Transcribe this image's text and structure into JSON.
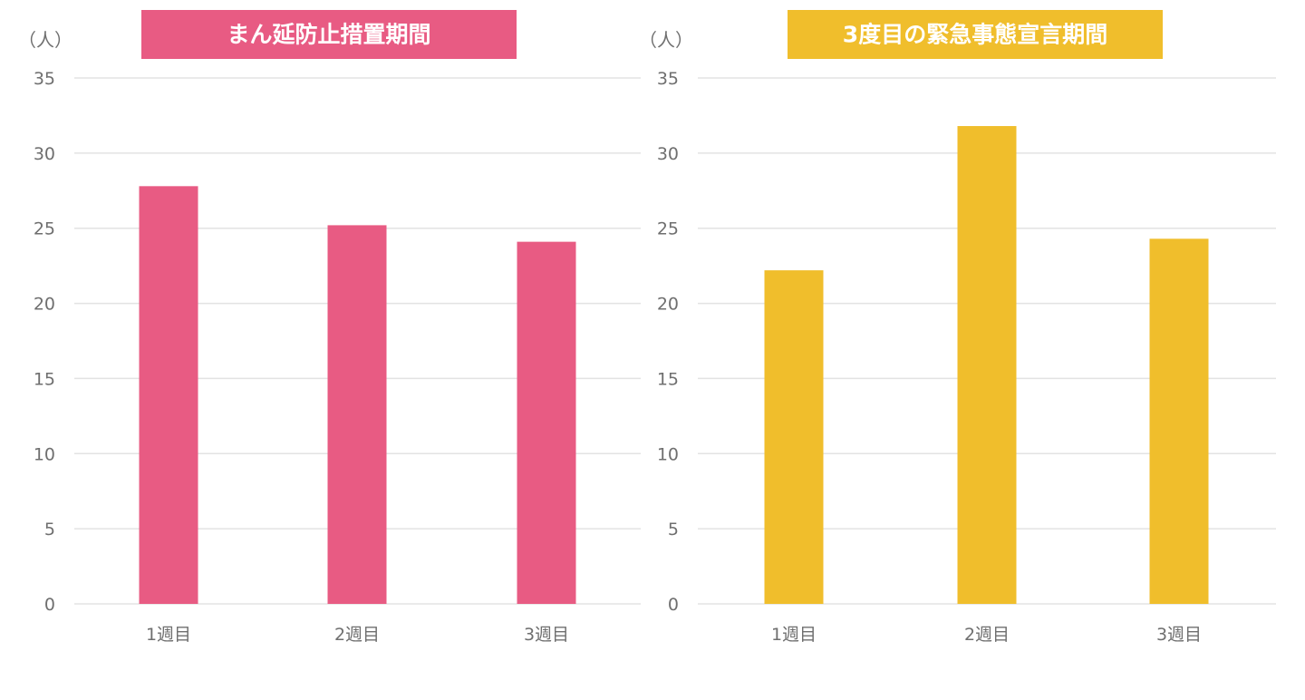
{
  "chart_data": [
    {
      "type": "bar",
      "title": "まん延防止措置期間",
      "title_bg_color": "#e85b83",
      "bar_color": "#e85b83",
      "ylabel": "（人）",
      "categories": [
        "1週目",
        "2週目",
        "3週目"
      ],
      "values": [
        27.8,
        25.2,
        24.1
      ],
      "ylim": [
        0,
        35
      ],
      "yticks": [
        0,
        5,
        10,
        15,
        20,
        25,
        30,
        35
      ],
      "grid": true,
      "legend": "none"
    },
    {
      "type": "bar",
      "title": "3度目の緊急事態宣言期間",
      "title_bg_color": "#f0be2c",
      "bar_color": "#f0be2c",
      "ylabel": "（人）",
      "categories": [
        "1週目",
        "2週目",
        "3週目"
      ],
      "values": [
        22.2,
        31.8,
        24.3
      ],
      "ylim": [
        0,
        35
      ],
      "yticks": [
        0,
        5,
        10,
        15,
        20,
        25,
        30,
        35
      ],
      "grid": true,
      "legend": "none"
    }
  ]
}
